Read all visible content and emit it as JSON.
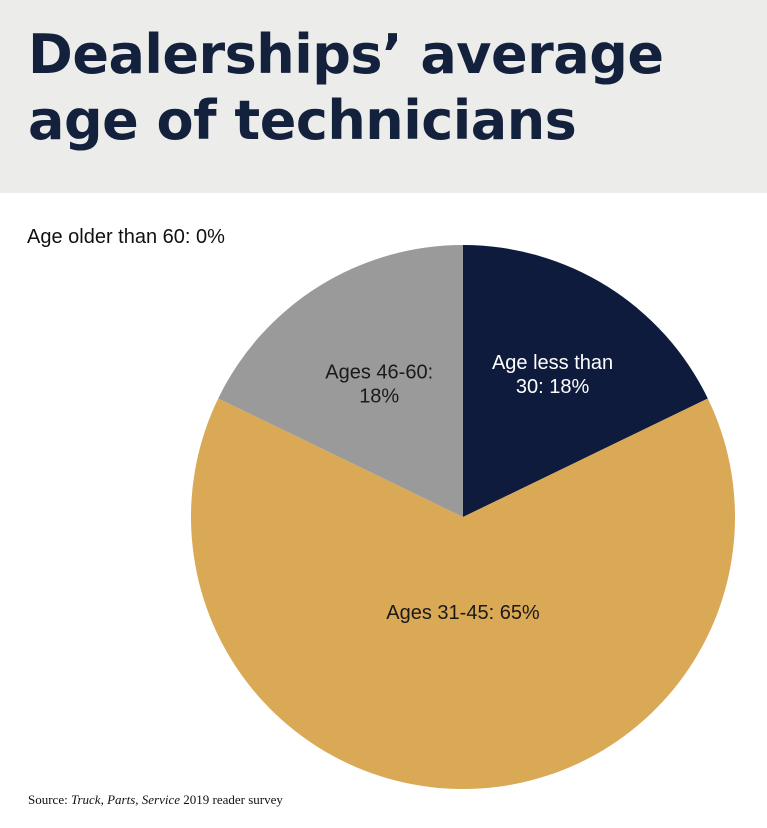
{
  "title": "Dealerships’ average age of technicians",
  "source": {
    "prefix": "Source: ",
    "publication": "Truck, Parts, Service",
    "suffix": " 2019 reader survey"
  },
  "chart_data": {
    "type": "pie",
    "title": "Dealerships’ average age of technicians",
    "slices": [
      {
        "label": "Age less than 30",
        "value": 18,
        "display": "Age less than 30: 18%",
        "label_lines": [
          "Age less than",
          "30: 18%"
        ],
        "color": "#0f1b3d",
        "text_color": "#ffffff"
      },
      {
        "label": "Ages 31-45",
        "value": 65,
        "display": "Ages 31-45: 65%",
        "label_lines": [
          "Ages 31-45: 65%"
        ],
        "color": "#d9a956",
        "text_color": "#1a1a1a"
      },
      {
        "label": "Ages 46-60",
        "value": 18,
        "display": "Ages 46-60: 18%",
        "label_lines": [
          "Ages 46-60:",
          "18%"
        ],
        "color": "#9b9a9b",
        "text_color": "#1a1a1a"
      },
      {
        "label": "Age older than 60",
        "value": 0,
        "display": "Age older than 60: 0%",
        "label_lines": [
          "Age older than 60: 0%"
        ],
        "color": "#cccccc",
        "text_color": "#111111"
      }
    ]
  }
}
